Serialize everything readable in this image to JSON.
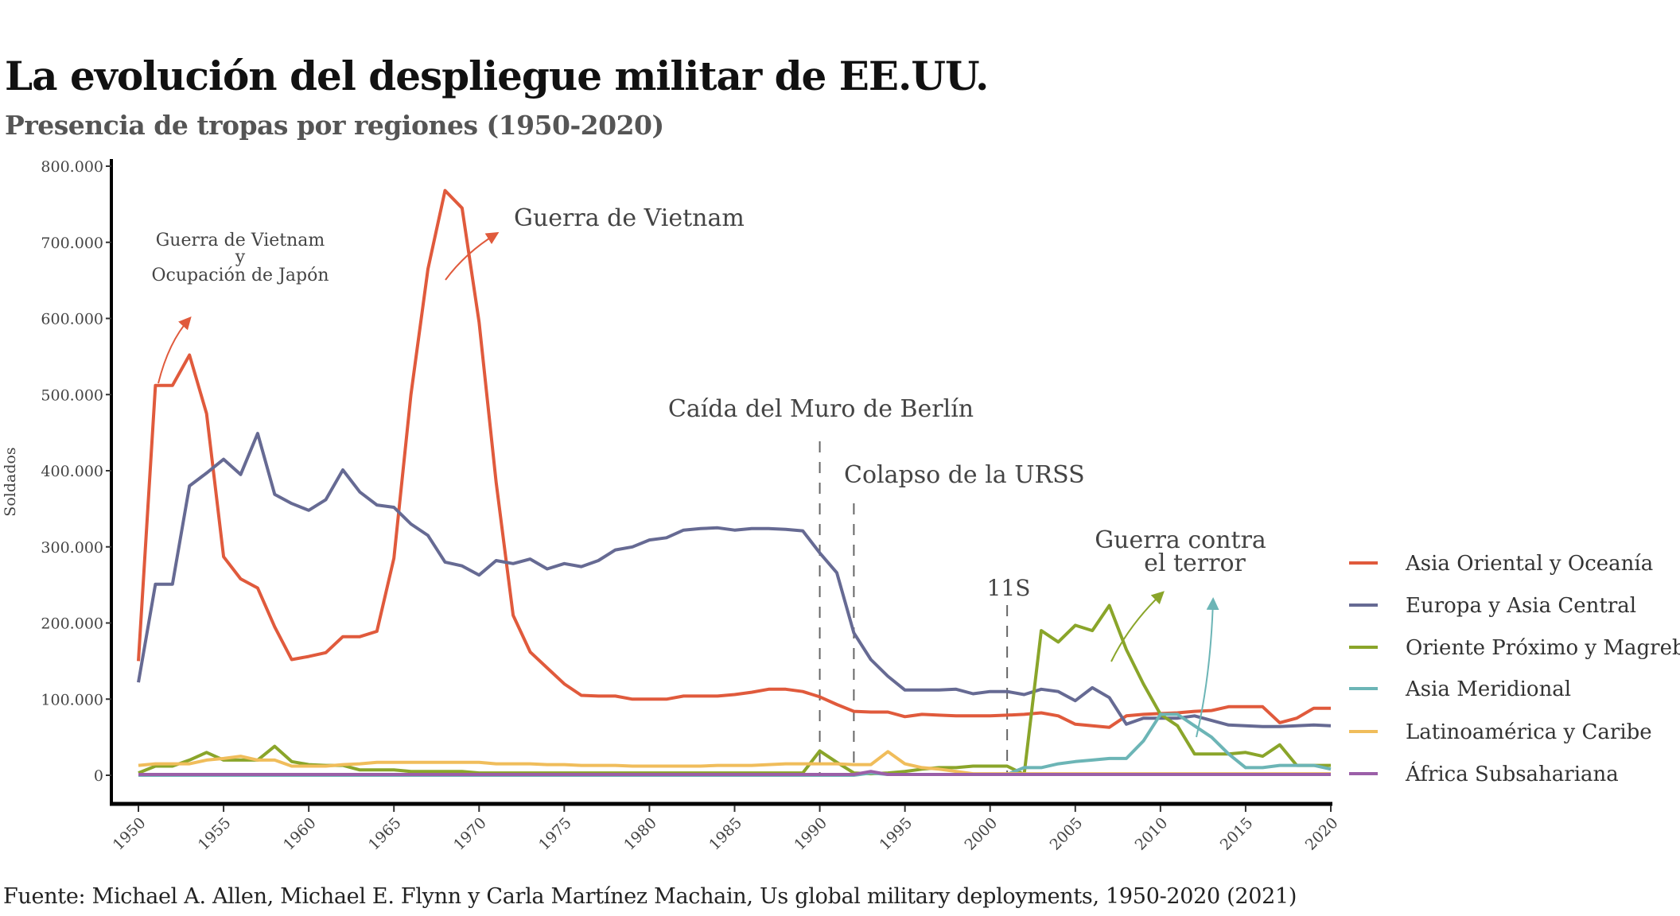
{
  "title": "La evolución del despliegue militar de EE.UU.",
  "subtitle": "Presencia de tropas por regiones (1950-2020)",
  "source": "Fuente: Michael A. Allen, Michael E. Flynn y Carla Martínez Machain, Us global military deployments, 1950-2020 (2021)",
  "chart_data": {
    "type": "line",
    "title": "La evolución del despliegue militar de EE.UU.",
    "subtitle": "Presencia de tropas por regiones (1950-2020)",
    "xlabel": "",
    "ylabel": "Soldados",
    "xlim": [
      1950,
      2020
    ],
    "ylim": [
      0,
      800000
    ],
    "x_start": 1950,
    "x_ticks": [
      "1950",
      "1955",
      "1960",
      "1965",
      "1970",
      "1975",
      "1980",
      "1985",
      "1990",
      "1995",
      "2000",
      "2005",
      "2010",
      "2015",
      "2020"
    ],
    "y_ticks": [
      0,
      100000,
      200000,
      300000,
      400000,
      500000,
      600000,
      700000,
      800000
    ],
    "y_tick_labels": [
      "0",
      "100.000",
      "200.000",
      "300.000",
      "400.000",
      "500.000",
      "600.000",
      "700.000",
      "800.000"
    ],
    "grid": false,
    "legend_position": "right",
    "series": [
      {
        "name": "Asia Oriental y Oceanía",
        "color": "#E05A3C",
        "values": [
          150000,
          512000,
          512000,
          552000,
          475000,
          287000,
          258000,
          246000,
          195000,
          152000,
          156000,
          161000,
          182000,
          182000,
          189000,
          285000,
          500000,
          665000,
          768000,
          745000,
          595000,
          385000,
          210000,
          162000,
          141000,
          120000,
          105000,
          104000,
          104000,
          100000,
          100000,
          100000,
          104000,
          104000,
          104000,
          106000,
          109000,
          113000,
          113000,
          110000,
          103000,
          93000,
          84000,
          83000,
          83000,
          77000,
          80000,
          79000,
          78000,
          78000,
          78000,
          79000,
          80000,
          82000,
          78000,
          67000,
          65000,
          63000,
          78000,
          80000,
          81000,
          82000,
          84000,
          85000,
          90000,
          90000,
          90000,
          69000,
          75000,
          88000,
          88000
        ]
      },
      {
        "name": "Europa y Asia Central",
        "color": "#666A93",
        "values": [
          122000,
          251000,
          251000,
          380000,
          397000,
          415000,
          395000,
          449000,
          369000,
          357000,
          348000,
          362000,
          401000,
          372000,
          355000,
          352000,
          330000,
          315000,
          280000,
          275000,
          263000,
          282000,
          278000,
          284000,
          271000,
          278000,
          274000,
          282000,
          296000,
          300000,
          309000,
          312000,
          322000,
          324000,
          325000,
          322000,
          324000,
          324000,
          323000,
          321000,
          292000,
          266000,
          187000,
          152000,
          130000,
          112000,
          112000,
          112000,
          113000,
          107000,
          110000,
          110000,
          106000,
          113000,
          110000,
          98000,
          115000,
          102000,
          67000,
          75000,
          75000,
          75000,
          78000,
          72000,
          66000,
          65000,
          64000,
          64000,
          65000,
          66000,
          65000
        ]
      },
      {
        "name": "Oriente Próximo y Magreb",
        "color": "#8AA52A",
        "values": [
          3000,
          12000,
          12000,
          20000,
          30000,
          20000,
          20000,
          20000,
          38000,
          18000,
          14000,
          13000,
          13000,
          7000,
          7000,
          7000,
          5000,
          5000,
          5000,
          5000,
          3000,
          3000,
          3000,
          3000,
          3000,
          3000,
          3000,
          3000,
          3000,
          3000,
          3000,
          3000,
          3000,
          3000,
          3000,
          3000,
          3000,
          3000,
          3000,
          3000,
          32000,
          17000,
          3000,
          2000,
          3000,
          5000,
          8000,
          10000,
          10000,
          12000,
          12000,
          12000,
          1000,
          190000,
          175000,
          197000,
          190000,
          223000,
          165000,
          120000,
          80000,
          65000,
          28000,
          28000,
          28000,
          30000,
          25000,
          40000,
          13000,
          13000,
          13000
        ]
      },
      {
        "name": "Asia Meridional",
        "color": "#6CB5B6",
        "values": [
          0,
          0,
          0,
          0,
          0,
          0,
          0,
          0,
          0,
          0,
          0,
          0,
          0,
          0,
          0,
          0,
          0,
          0,
          0,
          0,
          0,
          0,
          0,
          0,
          0,
          0,
          0,
          0,
          0,
          0,
          0,
          0,
          0,
          0,
          0,
          0,
          0,
          0,
          0,
          0,
          0,
          0,
          0,
          3000,
          1000,
          1000,
          1000,
          1000,
          1000,
          1000,
          1000,
          1000,
          10000,
          10000,
          15000,
          18000,
          20000,
          22000,
          22000,
          45000,
          80000,
          80000,
          65000,
          50000,
          28000,
          10000,
          10000,
          13000,
          13000,
          13000,
          8000
        ]
      },
      {
        "name": "Latinoamérica y Caribe",
        "color": "#F0BD5B",
        "values": [
          13000,
          15000,
          15000,
          15000,
          20000,
          22000,
          25000,
          20000,
          20000,
          12000,
          12000,
          12000,
          14000,
          15000,
          17000,
          17000,
          17000,
          17000,
          17000,
          17000,
          17000,
          15000,
          15000,
          15000,
          14000,
          14000,
          13000,
          13000,
          13000,
          12000,
          12000,
          12000,
          12000,
          12000,
          13000,
          13000,
          13000,
          14000,
          15000,
          15000,
          15000,
          15000,
          14000,
          14000,
          31000,
          15000,
          10000,
          8000,
          5000,
          2000,
          2000,
          2000,
          2000,
          2000,
          2000,
          2000,
          2000,
          2000,
          2000,
          2000,
          2000,
          2000,
          2000,
          2000,
          2000,
          2000,
          2000,
          2000,
          2000,
          2000,
          2000
        ]
      },
      {
        "name": "África Subsahariana",
        "color": "#9B5FA8",
        "values": [
          1000,
          1000,
          1000,
          1000,
          1000,
          1000,
          1000,
          1000,
          1000,
          1000,
          1000,
          1000,
          1000,
          1000,
          1000,
          1000,
          1000,
          1000,
          1000,
          1000,
          1000,
          1000,
          1000,
          1000,
          1000,
          1000,
          1000,
          1000,
          1000,
          1000,
          1000,
          1000,
          1000,
          1000,
          1000,
          1000,
          1000,
          1000,
          1000,
          1000,
          1000,
          1000,
          1000,
          5000,
          1000,
          1000,
          1000,
          1000,
          1000,
          1000,
          1000,
          1000,
          1000,
          1000,
          1000,
          1000,
          1000,
          1000,
          1000,
          1000,
          1000,
          1000,
          1000,
          1000,
          1000,
          1000,
          1000,
          1000,
          1000,
          1000,
          1000
        ]
      }
    ],
    "event_lines": [
      1990,
      1992,
      2001
    ],
    "annotations": {
      "vietnam_japon_1": "Guerra de Vietnam",
      "vietnam_japon_2": "y",
      "vietnam_japon_3": "Ocupación de Japón",
      "vietnam": "Guerra de Vietnam",
      "berlin": "Caída del Muro de Berlín",
      "urss": "Colapso de la URSS",
      "s11": "11S",
      "terror_1": "Guerra contra",
      "terror_2": "el terror"
    }
  }
}
